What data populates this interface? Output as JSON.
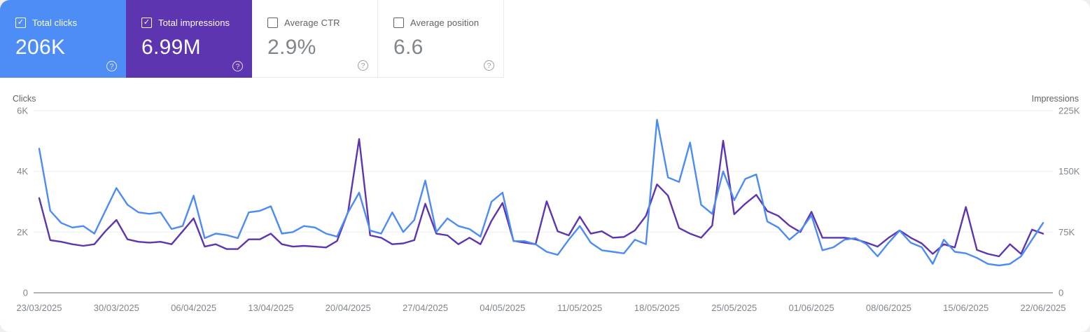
{
  "icons": {
    "check": "✓",
    "help": "?"
  },
  "colors": {
    "clicks_blue": "#4e8df5",
    "impressions_purple": "#5e35b1",
    "line_clicks": "#4c8bf7",
    "line_impressions": "#5e35b1",
    "tick_gray": "#80868b",
    "grid_light": "#eceef0",
    "axis_line": "#b2b5b8"
  },
  "cards": [
    {
      "label": "Total clicks",
      "value": "206K",
      "checked": true,
      "color": "#4e8df5"
    },
    {
      "label": "Total impressions",
      "value": "6.99M",
      "checked": true,
      "color": "#5e35b1"
    },
    {
      "label": "Average CTR",
      "value": "2.9%",
      "checked": false
    },
    {
      "label": "Average position",
      "value": "6.6",
      "checked": false
    }
  ],
  "chart_data": {
    "type": "line",
    "title": "",
    "ylabel_left": "Clicks",
    "ylabel_right": "Impressions",
    "yticks_left": [
      "6K",
      "4K",
      "2K",
      "0"
    ],
    "yticks_right": [
      "225K",
      "150K",
      "75K",
      "0"
    ],
    "ylim_left": [
      0,
      6000
    ],
    "ylim_right": [
      0,
      225000
    ],
    "grid": true,
    "legend_position": "none",
    "x_tick_labels": [
      "23/03/2025",
      "30/03/2025",
      "06/04/2025",
      "13/04/2025",
      "20/04/2025",
      "27/04/2025",
      "04/05/2025",
      "11/05/2025",
      "18/05/2025",
      "25/05/2025",
      "01/06/2025",
      "08/06/2025",
      "15/06/2025",
      "22/06/2025"
    ],
    "x_range": [
      "23/03/2025",
      "22/06/2025"
    ],
    "series": [
      {
        "name": "Clicks",
        "axis": "left",
        "color": "#4c8bf7",
        "values": [
          4750,
          2700,
          2300,
          2150,
          2200,
          1950,
          2700,
          3450,
          2900,
          2650,
          2600,
          2650,
          2100,
          2200,
          3200,
          1800,
          1950,
          1900,
          1800,
          2650,
          2700,
          2850,
          1950,
          2000,
          2200,
          2150,
          1950,
          1850,
          2650,
          3300,
          2050,
          1950,
          2650,
          2000,
          2400,
          3700,
          2000,
          2450,
          2200,
          2100,
          1850,
          3000,
          3300,
          1700,
          1700,
          1600,
          1350,
          1250,
          1750,
          2200,
          1650,
          1400,
          1350,
          1300,
          1750,
          1600,
          5700,
          3800,
          3650,
          4950,
          2900,
          2600,
          4000,
          3050,
          3750,
          3900,
          2350,
          2150,
          1750,
          2050,
          2550,
          1400,
          1500,
          1750,
          1800,
          1600,
          1200,
          1650,
          2050,
          1650,
          1500,
          950,
          1750,
          1350,
          1300,
          1150,
          950,
          900,
          950,
          1200,
          1750,
          2300
        ]
      },
      {
        "name": "Impressions",
        "axis": "right",
        "color": "#5e35b1",
        "values": [
          117000,
          65000,
          63000,
          60000,
          58000,
          60000,
          76000,
          90000,
          66000,
          63000,
          62000,
          63000,
          60000,
          76000,
          92000,
          57000,
          60000,
          54000,
          54000,
          66000,
          66000,
          73000,
          60000,
          57000,
          58000,
          57000,
          56000,
          64000,
          100000,
          190000,
          71000,
          68000,
          60000,
          61000,
          65000,
          110000,
          73000,
          71000,
          60000,
          68000,
          60000,
          89000,
          111000,
          64000,
          62000,
          60000,
          113000,
          76000,
          71000,
          94000,
          73000,
          76000,
          68000,
          69000,
          77000,
          95000,
          134000,
          120000,
          80000,
          73000,
          68000,
          83000,
          188000,
          97000,
          110000,
          121000,
          101000,
          95000,
          83000,
          75000,
          100000,
          68000,
          68000,
          68000,
          66000,
          62000,
          57000,
          68000,
          77000,
          68000,
          61000,
          48000,
          60000,
          56000,
          106000,
          53000,
          48000,
          45000,
          60000,
          48000,
          78000,
          73000
        ]
      }
    ]
  }
}
